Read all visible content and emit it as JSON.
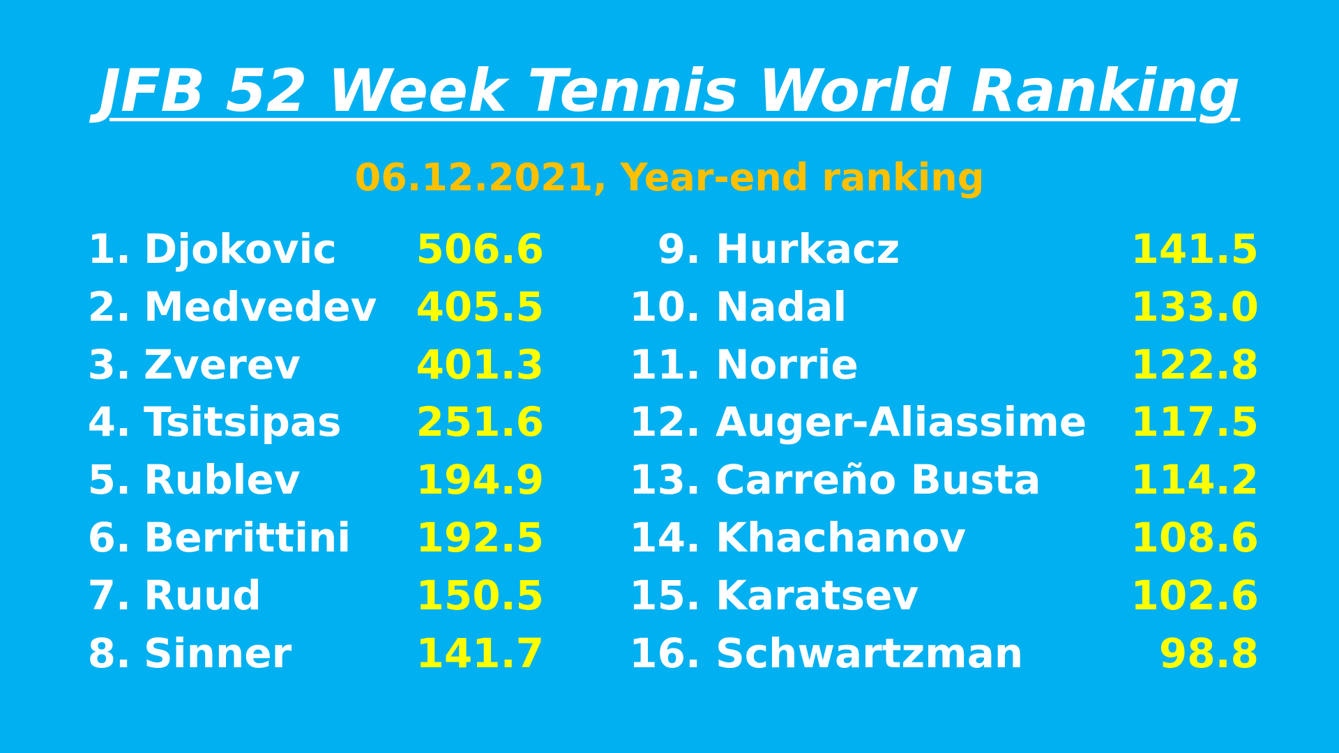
{
  "header": {
    "title": "JFB 52 Week Tennis World Ranking",
    "subtitle": "06.12.2021, Year-end ranking"
  },
  "columns": [
    [
      {
        "rank": "1.",
        "name": "Djokovic",
        "points": "506.6"
      },
      {
        "rank": "2.",
        "name": "Medvedev",
        "points": "405.5"
      },
      {
        "rank": "3.",
        "name": "Zverev",
        "points": "401.3"
      },
      {
        "rank": "4.",
        "name": "Tsitsipas",
        "points": "251.6"
      },
      {
        "rank": "5.",
        "name": "Rublev",
        "points": "194.9"
      },
      {
        "rank": "6.",
        "name": "Berrittini",
        "points": "192.5"
      },
      {
        "rank": "7.",
        "name": "Ruud",
        "points": "150.5"
      },
      {
        "rank": "8.",
        "name": "Sinner",
        "points": "141.7"
      }
    ],
    [
      {
        "rank": "9.",
        "name": "Hurkacz",
        "points": "141.5"
      },
      {
        "rank": "10.",
        "name": "Nadal",
        "points": "133.0"
      },
      {
        "rank": "11.",
        "name": "Norrie",
        "points": "122.8"
      },
      {
        "rank": "12.",
        "name": "Auger-Aliassime",
        "points": "117.5"
      },
      {
        "rank": "13.",
        "name": "Carreño Busta",
        "points": "114.2"
      },
      {
        "rank": "14.",
        "name": "Khachanov",
        "points": "108.6"
      },
      {
        "rank": "15.",
        "name": "Karatsev",
        "points": "102.6"
      },
      {
        "rank": "16.",
        "name": "Schwartzman",
        "points": "98.8"
      }
    ]
  ]
}
